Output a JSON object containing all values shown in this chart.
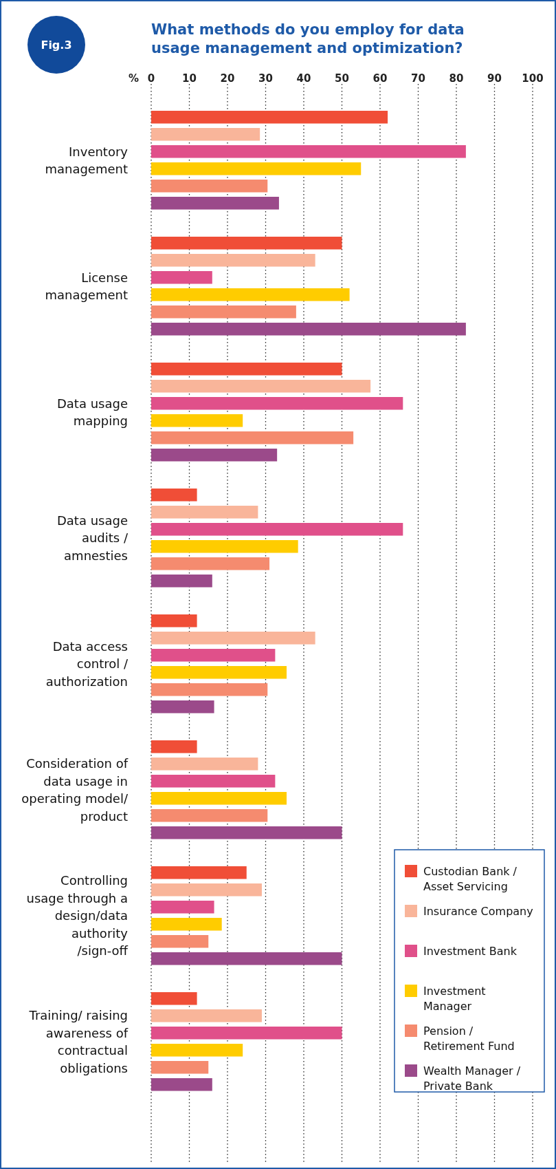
{
  "chart_data": {
    "type": "bar",
    "orientation": "horizontal",
    "title": "What methods do you employ for data usage management and optimization?",
    "annotations": [
      "Fig.3"
    ],
    "xlabel": "%",
    "categories": [
      "Inventory management",
      "License management",
      "Data usage mapping",
      "Data usage audits / amnesties",
      "Data access control / authorization",
      "Consideration of data usage in operating model/ product",
      "Controlling usage through a design/data authority /sign-off",
      "Training/ raising awareness of contractual obligations"
    ],
    "series": [
      {
        "name": "Custodian Bank / Asset Servicing",
        "color": "#f04e37",
        "values": [
          62,
          50,
          50,
          12,
          12,
          12,
          25,
          12
        ]
      },
      {
        "name": "Insurance Company",
        "color": "#f9b59a",
        "values": [
          28.5,
          43,
          57.5,
          28,
          43,
          28,
          29,
          29
        ]
      },
      {
        "name": "Investment Bank",
        "color": "#e0508a",
        "values": [
          82.5,
          16,
          66,
          66,
          32.5,
          32.5,
          16.5,
          50
        ]
      },
      {
        "name": "Investment Manager",
        "color": "#ffcc00",
        "values": [
          55,
          52,
          24,
          38.5,
          35.5,
          35.5,
          18.5,
          24
        ]
      },
      {
        "name": "Pension / Retirement Fund",
        "color": "#f58b6f",
        "values": [
          30.5,
          38,
          53,
          31,
          30.5,
          30.5,
          15,
          15
        ]
      },
      {
        "name": "Wealth Manager / Private Bank",
        "color": "#9b4a8a",
        "values": [
          33.5,
          82.5,
          33,
          16,
          16.5,
          50,
          50,
          16
        ]
      }
    ],
    "xlim": [
      0,
      100
    ],
    "xticks": [
      0,
      10,
      20,
      30,
      40,
      50,
      60,
      70,
      80,
      90,
      100
    ],
    "grid": "x",
    "legend": "bottom right"
  }
}
